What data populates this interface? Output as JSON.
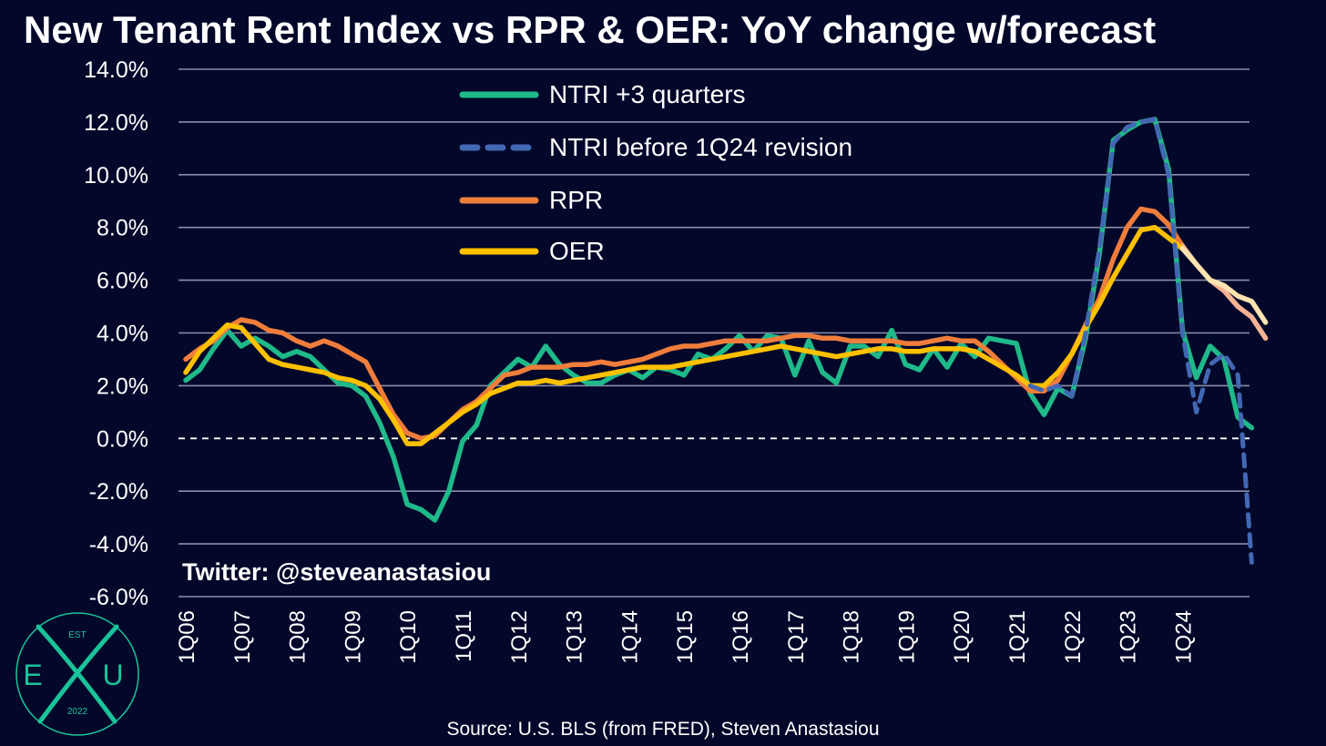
{
  "chart_data": {
    "type": "line",
    "title": "New Tenant Rent Index vs RPR & OER: YoY change w/forecast",
    "xlabel": "",
    "ylabel": "",
    "ylim": [
      -6,
      14
    ],
    "ytick_values": [
      -6,
      -4,
      -2,
      0,
      2,
      4,
      6,
      8,
      10,
      12,
      14
    ],
    "ytick_labels": [
      "-6.0%",
      "-4.0%",
      "-2.0%",
      "0.0%",
      "2.0%",
      "4.0%",
      "6.0%",
      "8.0%",
      "10.0%",
      "12.0%",
      "14.0%"
    ],
    "xtick_labels": [
      "1Q06",
      "1Q07",
      "1Q08",
      "1Q09",
      "1Q10",
      "1Q11",
      "1Q12",
      "1Q13",
      "1Q14",
      "1Q15",
      "1Q16",
      "1Q17",
      "1Q18",
      "1Q19",
      "1Q20",
      "1Q21",
      "1Q22",
      "1Q23",
      "1Q24"
    ],
    "grid": true,
    "legend_position": "top-center",
    "zero_line": "dashed",
    "annotation": "Twitter: @steveanastasiou",
    "source": "Source: U.S. BLS (from FRED), Steven Anastasiou",
    "series": [
      {
        "name": "NTRI +3 quarters",
        "color": "#1fb98a",
        "style": "solid",
        "start_quarter": 0,
        "values": [
          2.2,
          2.6,
          3.4,
          4.1,
          3.5,
          3.8,
          3.5,
          3.1,
          3.3,
          3.1,
          2.6,
          2.1,
          2.0,
          1.6,
          0.6,
          -0.7,
          -2.5,
          -2.7,
          -3.1,
          -2.0,
          -0.1,
          0.5,
          2.0,
          2.5,
          3.0,
          2.7,
          3.5,
          2.8,
          2.4,
          2.1,
          2.1,
          2.4,
          2.6,
          2.3,
          2.7,
          2.6,
          2.4,
          3.2,
          3.0,
          3.4,
          3.9,
          3.3,
          3.9,
          3.8,
          2.4,
          3.7,
          2.5,
          2.1,
          3.5,
          3.5,
          3.1,
          4.1,
          2.8,
          2.6,
          3.4,
          2.7,
          3.6,
          3.1,
          3.8,
          3.7,
          3.6,
          1.7,
          0.9,
          1.9,
          1.6,
          3.8,
          7.0,
          11.3,
          11.7,
          12.0,
          12.1,
          10.2,
          4.1,
          2.3,
          3.5,
          3.0,
          0.8,
          0.4
        ]
      },
      {
        "name": "NTRI before 1Q24 revision",
        "color": "#4268b3",
        "style": "dashed",
        "start_quarter": 61,
        "values": [
          2.0,
          1.8,
          2.0,
          1.6,
          4.0,
          7.2,
          11.2,
          11.8,
          12.0,
          12.1,
          10.0,
          4.0,
          1.0,
          2.8,
          3.2,
          2.4,
          -4.7
        ]
      },
      {
        "name": "RPR",
        "color": "#ef7d3c",
        "style": "solid",
        "start_quarter": 0,
        "forecast_from_index": 72,
        "forecast_color": "#f6b394",
        "values": [
          3.0,
          3.4,
          3.7,
          4.2,
          4.5,
          4.4,
          4.1,
          4.0,
          3.7,
          3.5,
          3.7,
          3.5,
          3.2,
          2.9,
          1.9,
          0.9,
          0.2,
          0.0,
          0.1,
          0.6,
          1.1,
          1.4,
          1.9,
          2.4,
          2.5,
          2.7,
          2.7,
          2.7,
          2.8,
          2.8,
          2.9,
          2.8,
          2.9,
          3.0,
          3.2,
          3.4,
          3.5,
          3.5,
          3.6,
          3.7,
          3.7,
          3.7,
          3.7,
          3.8,
          3.9,
          3.9,
          3.8,
          3.8,
          3.7,
          3.7,
          3.7,
          3.7,
          3.6,
          3.6,
          3.7,
          3.8,
          3.7,
          3.7,
          3.3,
          2.8,
          2.3,
          1.8,
          1.8,
          2.2,
          3.2,
          4.3,
          5.3,
          6.8,
          8.0,
          8.7,
          8.6,
          8.1,
          7.3,
          6.6,
          6.0,
          5.6,
          5.0,
          4.6,
          3.8
        ]
      },
      {
        "name": "OER",
        "color": "#ffc000",
        "style": "solid",
        "start_quarter": 0,
        "forecast_from_index": 72,
        "forecast_color": "#fde4b0",
        "values": [
          2.5,
          3.3,
          3.8,
          4.3,
          4.2,
          3.6,
          3.0,
          2.8,
          2.7,
          2.6,
          2.5,
          2.3,
          2.2,
          2.0,
          1.5,
          0.7,
          -0.2,
          -0.2,
          0.2,
          0.6,
          1.0,
          1.3,
          1.7,
          1.9,
          2.1,
          2.1,
          2.2,
          2.1,
          2.2,
          2.3,
          2.4,
          2.5,
          2.6,
          2.7,
          2.7,
          2.7,
          2.8,
          2.9,
          3.0,
          3.1,
          3.2,
          3.3,
          3.4,
          3.5,
          3.4,
          3.3,
          3.2,
          3.1,
          3.2,
          3.3,
          3.4,
          3.4,
          3.3,
          3.3,
          3.4,
          3.4,
          3.4,
          3.3,
          3.0,
          2.7,
          2.4,
          2.0,
          2.0,
          2.5,
          3.2,
          4.2,
          5.1,
          6.1,
          7.0,
          7.9,
          8.0,
          7.6,
          7.2,
          6.6,
          6.0,
          5.8,
          5.4,
          5.2,
          4.4
        ]
      }
    ]
  },
  "logo": {
    "top": "EST",
    "left_letter": "E",
    "center_letter": "X",
    "right_letter": "U",
    "bottom": "2022",
    "color": "#19c49a"
  }
}
